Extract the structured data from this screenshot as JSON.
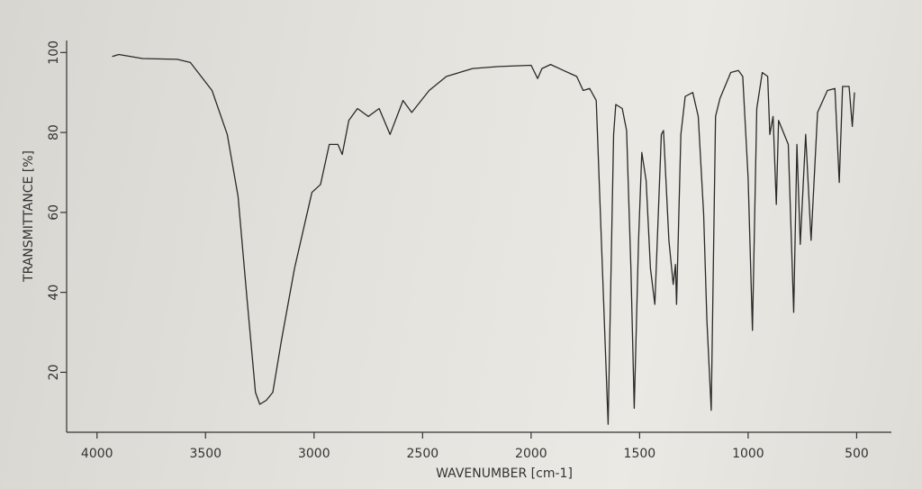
{
  "chart_data": {
    "type": "line",
    "xlabel": "WAVENUMBER [cm-1]",
    "ylabel": "TRANSMITTANCE [%]",
    "xlim": [
      4140,
      340
    ],
    "ylim": [
      5,
      103
    ],
    "xticks": [
      4000,
      3500,
      3000,
      2500,
      2000,
      1500,
      1000,
      500
    ],
    "yticks": [
      20,
      40,
      60,
      80,
      100
    ],
    "x_reversed": true,
    "color": "#2a2a2a",
    "x": [
      3930,
      3900,
      3790,
      3630,
      3570,
      3470,
      3400,
      3350,
      3310,
      3270,
      3250,
      3220,
      3190,
      3150,
      3090,
      3010,
      2970,
      2930,
      2890,
      2870,
      2840,
      2800,
      2750,
      2700,
      2650,
      2590,
      2550,
      2470,
      2390,
      2270,
      2150,
      2000,
      1970,
      1950,
      1910,
      1850,
      1790,
      1760,
      1730,
      1700,
      1645,
      1620,
      1610,
      1580,
      1560,
      1540,
      1525,
      1505,
      1490,
      1470,
      1450,
      1430,
      1400,
      1390,
      1365,
      1345,
      1335,
      1330,
      1310,
      1290,
      1255,
      1230,
      1205,
      1190,
      1170,
      1150,
      1130,
      1080,
      1045,
      1025,
      1000,
      980,
      960,
      935,
      910,
      900,
      885,
      870,
      860,
      815,
      790,
      775,
      760,
      735,
      710,
      680,
      635,
      600,
      580,
      565,
      535,
      520,
      510
    ],
    "values": [
      99,
      99.5,
      98.5,
      98.3,
      97.5,
      90.5,
      79.5,
      64,
      39,
      15,
      12,
      13,
      15,
      28,
      46,
      65,
      67,
      77,
      77,
      74.5,
      83,
      86,
      84,
      86,
      79.5,
      88,
      85,
      90.5,
      94,
      96,
      96.5,
      96.8,
      93.5,
      96,
      97,
      95.5,
      94,
      90.5,
      91,
      88,
      7,
      79.5,
      87,
      86,
      80.5,
      46,
      11,
      53,
      75,
      68,
      46,
      37,
      79.5,
      80.5,
      53,
      42,
      47,
      37,
      79.5,
      89,
      90,
      84,
      59.5,
      33,
      10.5,
      84,
      88.5,
      95,
      95.5,
      94,
      68.5,
      30.5,
      86,
      95,
      94,
      79.5,
      84,
      62,
      83,
      77,
      35,
      77,
      52,
      79.5,
      53,
      85,
      90.5,
      91,
      67.5,
      91.5,
      91.5,
      81.5,
      90
    ]
  }
}
